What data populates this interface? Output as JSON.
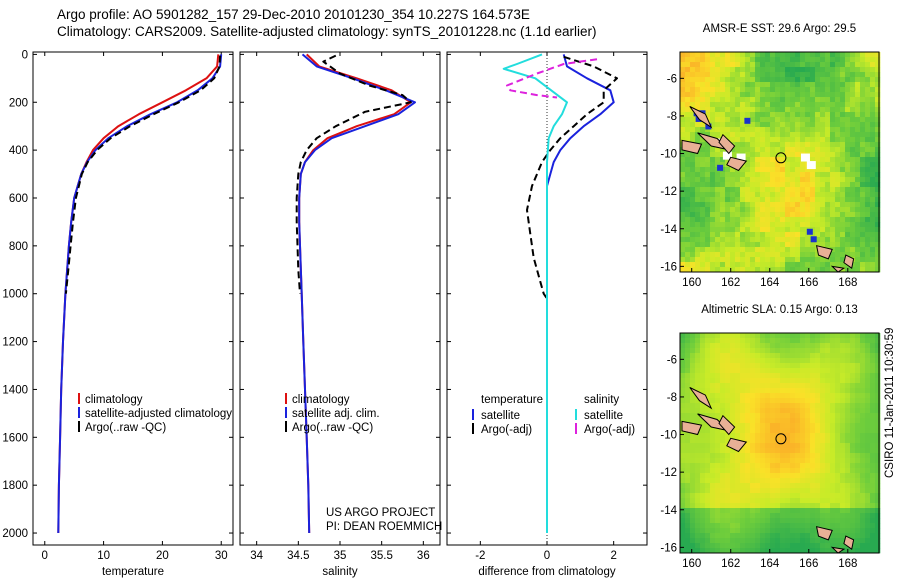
{
  "header": {
    "line1": "Argo profile: AO 5901282_157 29-Dec-2010 20101230_354 10.227S 164.573E",
    "line2": "Climatology: CARS2009. Satellite-adjusted climatology: synTS_20101228.nc (1.1d earlier)"
  },
  "side_label": "CSIRO 11-Jan-2011 10:30:59",
  "colors": {
    "climatology": "#dd1111",
    "satellite": "#1a22dd",
    "argo": "#000000",
    "satellite_salinity": "#22dddd",
    "argo_salinity": "#dd22dd"
  },
  "chart_data": [
    {
      "type": "line",
      "title": "",
      "xlabel": "temperature",
      "ylabel": "",
      "xlim": [
        -2,
        32
      ],
      "ylim": [
        2050,
        -10
      ],
      "xticks": [
        0,
        10,
        20,
        30
      ],
      "yticks": [
        0,
        200,
        400,
        600,
        800,
        1000,
        1200,
        1400,
        1600,
        1800,
        2000
      ],
      "legend": [
        "climatology",
        "satellite-adjusted climatology",
        "Argo(..raw -QC)"
      ],
      "annotation": "",
      "series": [
        {
          "name": "climatology",
          "style": "climatology",
          "x": [
            29.5,
            29.3,
            27.5,
            24,
            20,
            16,
            12.5,
            10,
            8.2,
            7.1,
            6.2,
            5.6,
            5,
            4.5,
            4.1,
            3.5,
            3.1,
            2.8,
            2.6,
            2.4,
            2.3
          ],
          "y": [
            0,
            50,
            100,
            150,
            200,
            250,
            300,
            350,
            400,
            450,
            500,
            550,
            600,
            700,
            800,
            1000,
            1200,
            1400,
            1600,
            1800,
            2000
          ]
        },
        {
          "name": "satellite-adjusted climatology",
          "style": "satellite",
          "x": [
            30,
            29.8,
            28.5,
            26,
            22.5,
            18,
            14,
            10.8,
            8.6,
            7.2,
            6.2,
            5.6,
            5,
            4.5,
            4.1,
            3.5,
            3.1,
            2.8,
            2.6,
            2.4,
            2.3
          ],
          "y": [
            0,
            50,
            100,
            150,
            200,
            250,
            300,
            350,
            400,
            450,
            500,
            550,
            600,
            700,
            800,
            1000,
            1200,
            1400,
            1600,
            1800,
            2000
          ]
        },
        {
          "name": "Argo(..raw -QC)",
          "style": "argo",
          "x": [
            29.8,
            29.7,
            28.8,
            26.5,
            22.8,
            18.5,
            14.5,
            11.2,
            8.9,
            7.3,
            6.3,
            5.8,
            5.3,
            4.8,
            4.4,
            4,
            3.6
          ],
          "y": [
            5,
            50,
            100,
            150,
            200,
            250,
            300,
            350,
            400,
            450,
            500,
            550,
            600,
            700,
            800,
            900,
            1000
          ]
        }
      ]
    },
    {
      "type": "line",
      "title": "",
      "xlabel": "salinity",
      "ylabel": "",
      "xlim": [
        33.8,
        36.2
      ],
      "ylim": [
        2050,
        -10
      ],
      "xticks": [
        34,
        34.5,
        35,
        35.5,
        36
      ],
      "yticks": [
        0,
        200,
        400,
        600,
        800,
        1000,
        1200,
        1400,
        1600,
        1800,
        2000
      ],
      "legend": [
        "climatology",
        "satellite adj. clim.",
        "Argo(..raw -QC)"
      ],
      "annotation": "US ARGO PROJECT\nPI: DEAN ROEMMICH",
      "series": [
        {
          "name": "climatology",
          "style": "climatology",
          "x": [
            34.6,
            34.75,
            35.2,
            35.62,
            35.85,
            35.65,
            35.2,
            34.85,
            34.68,
            34.58,
            34.53,
            34.51,
            34.51,
            34.52,
            34.54,
            34.56,
            34.58,
            34.6,
            34.62,
            34.63
          ],
          "y": [
            0,
            50,
            100,
            150,
            200,
            250,
            300,
            350,
            400,
            450,
            500,
            600,
            700,
            800,
            1000,
            1200,
            1400,
            1600,
            1800,
            2000
          ]
        },
        {
          "name": "satellite adj. clim.",
          "style": "satellite",
          "x": [
            34.55,
            34.72,
            35.15,
            35.55,
            35.9,
            35.7,
            35.3,
            34.9,
            34.7,
            34.58,
            34.53,
            34.51,
            34.51,
            34.52,
            34.54,
            34.56,
            34.58,
            34.6,
            34.62,
            34.63
          ],
          "y": [
            0,
            50,
            100,
            150,
            200,
            250,
            300,
            350,
            400,
            450,
            500,
            600,
            700,
            800,
            1000,
            1200,
            1400,
            1600,
            1800,
            2000
          ]
        },
        {
          "name": "Argo(..raw -QC)",
          "style": "argo",
          "x": [
            34.95,
            34.8,
            35.0,
            35.35,
            35.75,
            35.85,
            35.3,
            34.95,
            34.72,
            34.6,
            34.53,
            34.5,
            34.48,
            34.48,
            34.49,
            34.5,
            34.52
          ],
          "y": [
            5,
            30,
            80,
            130,
            170,
            200,
            240,
            300,
            350,
            400,
            450,
            500,
            600,
            700,
            800,
            900,
            1000
          ]
        }
      ]
    },
    {
      "type": "line",
      "title": "",
      "xlabel": "difference from climatology",
      "ylabel": "",
      "xlim": [
        -3,
        3
      ],
      "ylim": [
        2050,
        -10
      ],
      "xticks": [
        -2,
        0,
        2
      ],
      "yticks": [
        0,
        200,
        400,
        600,
        800,
        1000,
        1200,
        1400,
        1600,
        1800,
        2000
      ],
      "legend_columns": [
        {
          "heading": "temperature",
          "items": [
            "satellite",
            "Argo(-adj)"
          ]
        },
        {
          "heading": "salinity",
          "items": [
            "satellite",
            "Argo(-adj)"
          ]
        }
      ],
      "series": [
        {
          "name": "temperature satellite",
          "style": "satellite",
          "x": [
            0.5,
            0.6,
            1.2,
            1.9,
            2.0,
            1.6,
            1.1,
            0.7,
            0.4,
            0.2,
            0.1,
            0,
            0,
            0,
            0,
            0,
            0,
            0,
            0
          ],
          "y": [
            0,
            50,
            100,
            150,
            200,
            250,
            300,
            350,
            400,
            450,
            500,
            550,
            600,
            700,
            800,
            1000,
            1400,
            1800,
            2000
          ]
        },
        {
          "name": "temperature Argo(-adj)",
          "style": "argo",
          "x": [
            0.5,
            1.4,
            2.1,
            1.7,
            1.7,
            1.2,
            0.8,
            0.4,
            0.1,
            -0.15,
            -0.3,
            -0.45,
            -0.6,
            -0.5,
            -0.4,
            -0.2,
            -0.1,
            0
          ],
          "y": [
            10,
            50,
            100,
            150,
            200,
            250,
            300,
            350,
            400,
            450,
            500,
            550,
            650,
            750,
            850,
            950,
            1000,
            1020
          ]
        },
        {
          "name": "salinity satellite",
          "style": "satellite_salinity",
          "x": [
            -0.15,
            -0.9,
            -1.3,
            -0.35,
            0.6,
            0.45,
            0.2,
            0.05,
            0,
            0,
            0,
            0,
            0
          ],
          "y": [
            0,
            40,
            60,
            100,
            200,
            250,
            300,
            350,
            450,
            600,
            1000,
            1600,
            2000
          ]
        },
        {
          "name": "salinity Argo(-adj)",
          "style": "argo_salinity",
          "x": [
            1.5,
            0.5,
            -0.3,
            -1.2,
            -1.1,
            -0.3,
            0.3
          ],
          "y": [
            20,
            40,
            80,
            130,
            150,
            170,
            180
          ]
        }
      ]
    },
    {
      "type": "heatmap",
      "title": "AMSR-E SST: 29.6 Argo: 29.5",
      "xlabel": "",
      "ylabel": "",
      "xlim": [
        159.4,
        169.6
      ],
      "ylim": [
        -16.3,
        -4.6
      ],
      "xticks": [
        160,
        162,
        164,
        166,
        168
      ],
      "yticks": [
        -6,
        -8,
        -10,
        -12,
        -14,
        -16
      ],
      "marker": {
        "lon": 164.573,
        "lat": -10.227
      }
    },
    {
      "type": "heatmap",
      "title": "Altimetric SLA: 0.15 Argo: 0.13",
      "xlabel": "",
      "ylabel": "",
      "xlim": [
        159.4,
        169.6
      ],
      "ylim": [
        -16.3,
        -4.6
      ],
      "xticks": [
        160,
        162,
        164,
        166,
        168
      ],
      "yticks": [
        -6,
        -8,
        -10,
        -12,
        -14,
        -16
      ],
      "marker": {
        "lon": 164.573,
        "lat": -10.227
      }
    }
  ]
}
